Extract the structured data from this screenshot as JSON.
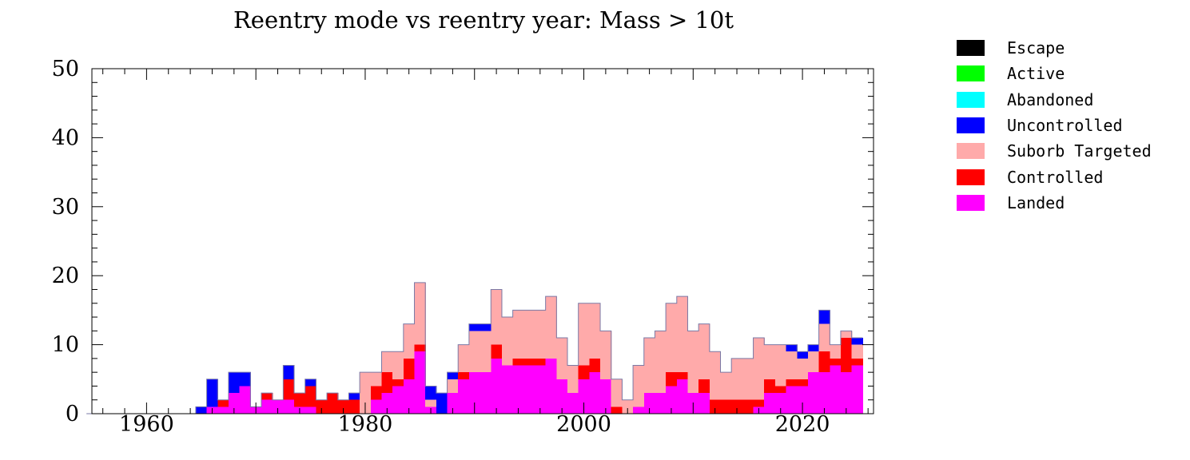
{
  "chart_data": {
    "type": "bar",
    "stacked": true,
    "title": "Reentry mode vs reentry year: Mass > 10t",
    "xlabel": "",
    "ylabel": "",
    "xlim": [
      1955,
      2026
    ],
    "ylim": [
      0,
      50
    ],
    "x_ticks": [
      1960,
      1980,
      2000,
      2020
    ],
    "y_ticks": [
      0,
      10,
      20,
      30,
      40,
      50
    ],
    "legend_position": "right",
    "years": [
      1955,
      1956,
      1957,
      1958,
      1959,
      1960,
      1961,
      1962,
      1963,
      1964,
      1965,
      1966,
      1967,
      1968,
      1969,
      1970,
      1971,
      1972,
      1973,
      1974,
      1975,
      1976,
      1977,
      1978,
      1979,
      1980,
      1981,
      1982,
      1983,
      1984,
      1985,
      1986,
      1987,
      1988,
      1989,
      1990,
      1991,
      1992,
      1993,
      1994,
      1995,
      1996,
      1997,
      1998,
      1999,
      2000,
      2001,
      2002,
      2003,
      2004,
      2005,
      2006,
      2007,
      2008,
      2009,
      2010,
      2011,
      2012,
      2013,
      2014,
      2015,
      2016,
      2017,
      2018,
      2019,
      2020,
      2021,
      2022,
      2023,
      2024,
      2025
    ],
    "series": [
      {
        "name": "Landed",
        "color": "#ff00ff",
        "values": [
          0,
          0,
          0,
          0,
          0,
          0,
          0,
          0,
          0,
          0,
          0,
          1,
          1,
          3,
          4,
          1,
          2,
          2,
          2,
          1,
          1,
          0,
          0,
          0,
          0,
          0,
          2,
          3,
          4,
          5,
          9,
          1,
          0,
          3,
          5,
          6,
          6,
          8,
          7,
          7,
          7,
          7,
          8,
          5,
          3,
          5,
          6,
          5,
          0,
          0,
          1,
          3,
          3,
          4,
          5,
          3,
          3,
          0,
          0,
          0,
          0,
          1,
          3,
          3,
          4,
          4,
          6,
          6,
          7,
          6,
          7
        ]
      },
      {
        "name": "Controlled",
        "color": "#ff0000",
        "values": [
          0,
          0,
          0,
          0,
          0,
          0,
          0,
          0,
          0,
          0,
          0,
          0,
          1,
          0,
          0,
          0,
          1,
          0,
          3,
          2,
          3,
          2,
          3,
          2,
          2,
          0,
          2,
          3,
          1,
          3,
          1,
          0,
          0,
          0,
          1,
          0,
          0,
          2,
          0,
          1,
          1,
          1,
          0,
          0,
          0,
          2,
          2,
          0,
          1,
          0,
          0,
          0,
          0,
          2,
          1,
          0,
          2,
          2,
          2,
          2,
          2,
          1,
          2,
          1,
          1,
          1,
          0,
          3,
          1,
          5,
          1
        ]
      },
      {
        "name": "Suborb Targeted",
        "color": "#ffaaaa",
        "values": [
          0,
          0,
          0,
          0,
          0,
          0,
          0,
          0,
          0,
          0,
          0,
          0,
          0,
          0,
          0,
          0,
          0,
          0,
          0,
          0,
          0,
          0,
          0,
          0,
          0,
          6,
          2,
          3,
          4,
          5,
          9,
          1,
          0,
          2,
          4,
          6,
          6,
          8,
          7,
          7,
          7,
          7,
          9,
          6,
          4,
          9,
          8,
          7,
          4,
          2,
          6,
          8,
          9,
          10,
          11,
          9,
          8,
          7,
          4,
          6,
          6,
          9,
          5,
          6,
          4,
          3,
          3,
          4,
          2,
          1,
          2
        ]
      },
      {
        "name": "Uncontrolled",
        "color": "#0000ff",
        "values": [
          0,
          0,
          0,
          0,
          0,
          0,
          0,
          0,
          0,
          0,
          1,
          4,
          0,
          3,
          2,
          0,
          0,
          0,
          2,
          0,
          1,
          0,
          0,
          0,
          1,
          0,
          0,
          0,
          0,
          0,
          0,
          2,
          3,
          1,
          0,
          1,
          1,
          0,
          0,
          0,
          0,
          0,
          0,
          0,
          0,
          0,
          0,
          0,
          0,
          0,
          0,
          0,
          0,
          0,
          0,
          0,
          0,
          0,
          0,
          0,
          0,
          0,
          0,
          0,
          1,
          1,
          1,
          2,
          0,
          0,
          1
        ]
      },
      {
        "name": "Abandoned",
        "color": "#00ffff",
        "values": [
          0,
          0,
          0,
          0,
          0,
          0,
          0,
          0,
          0,
          0,
          0,
          0,
          0,
          0,
          0,
          0,
          0,
          0,
          0,
          0,
          0,
          0,
          0,
          0,
          0,
          0,
          0,
          0,
          0,
          0,
          0,
          0,
          0,
          0,
          0,
          0,
          0,
          0,
          0,
          0,
          0,
          0,
          0,
          0,
          0,
          0,
          0,
          0,
          0,
          0,
          0,
          0,
          0,
          0,
          0,
          0,
          0,
          0,
          0,
          0,
          0,
          0,
          0,
          0,
          0,
          0,
          0,
          0,
          0,
          0,
          0
        ]
      },
      {
        "name": "Active",
        "color": "#00ff00",
        "values": [
          0,
          0,
          0,
          0,
          0,
          0,
          0,
          0,
          0,
          0,
          0,
          0,
          0,
          0,
          0,
          0,
          0,
          0,
          0,
          0,
          0,
          0,
          0,
          0,
          0,
          0,
          0,
          0,
          0,
          0,
          0,
          0,
          0,
          0,
          0,
          0,
          0,
          0,
          0,
          0,
          0,
          0,
          0,
          0,
          0,
          0,
          0,
          0,
          0,
          0,
          0,
          0,
          0,
          0,
          0,
          0,
          0,
          0,
          0,
          0,
          0,
          0,
          0,
          0,
          0,
          0,
          0,
          0,
          0,
          0,
          0
        ]
      },
      {
        "name": "Escape",
        "color": "#000000",
        "values": [
          0,
          0,
          0,
          0,
          0,
          0,
          0,
          0,
          0,
          0,
          0,
          0,
          0,
          0,
          0,
          0,
          0,
          0,
          0,
          0,
          0,
          0,
          0,
          0,
          0,
          0,
          0,
          0,
          0,
          0,
          0,
          0,
          0,
          0,
          0,
          0,
          0,
          0,
          0,
          0,
          0,
          0,
          0,
          0,
          0,
          0,
          0,
          0,
          0,
          0,
          0,
          0,
          0,
          0,
          0,
          0,
          0,
          0,
          0,
          0,
          0,
          0,
          0,
          0,
          0,
          0,
          0,
          0,
          0,
          0,
          0
        ]
      }
    ],
    "legend_order": [
      "Escape",
      "Active",
      "Abandoned",
      "Uncontrolled",
      "Suborb Targeted",
      "Controlled",
      "Landed"
    ]
  }
}
